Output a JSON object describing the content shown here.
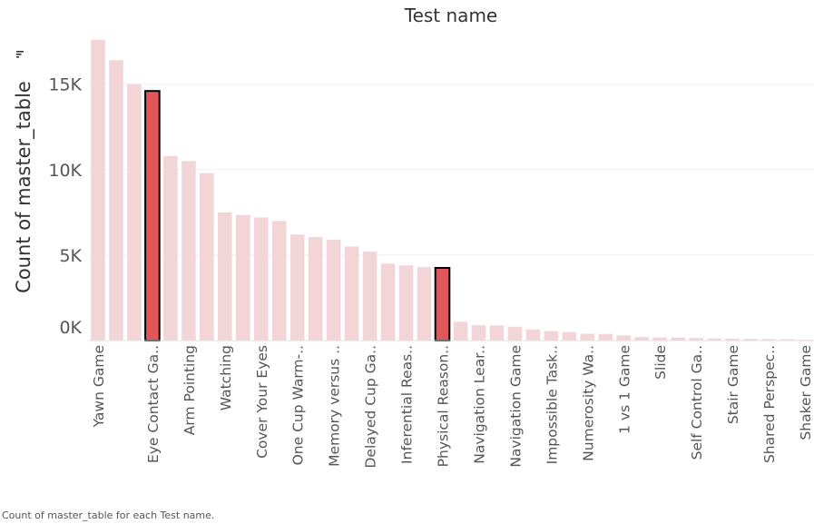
{
  "chart_data": {
    "type": "bar",
    "title": "Test name",
    "xlabel": "",
    "ylabel": "Count of master_table",
    "ylim": [
      0,
      17800
    ],
    "y_ticks": [
      0,
      5000,
      10000,
      15000
    ],
    "y_tick_labels": [
      "0K",
      "5K",
      "10K",
      "15K"
    ],
    "grid": true,
    "sorted_icon": "sort-descending-icon",
    "categories": [
      "Yawn Game",
      "",
      "",
      "Eye Contact Ga..",
      "",
      "Arm Pointing",
      "",
      "Watching",
      "",
      "Cover Your Eyes",
      "",
      "One Cup Warm-..",
      "",
      "Memory versus ..",
      "",
      "Delayed Cup Ga..",
      "",
      "Inferential Reas..",
      "",
      "Physical Reason..",
      "",
      "Navigation Lear..",
      "",
      "Navigation Game",
      "",
      "Impossible Task..",
      "",
      "Numerosity Wa..",
      "",
      "1 vs 1 Game",
      "",
      "Slide",
      "",
      "Self Control Ga..",
      "",
      "Stair Game",
      "",
      "Shared Perspec..",
      "",
      "Shaker Game"
    ],
    "values": [
      17600,
      16400,
      15000,
      14600,
      10800,
      10500,
      9800,
      7500,
      7350,
      7200,
      7000,
      6200,
      6050,
      5900,
      5500,
      5200,
      4500,
      4400,
      4300,
      4250,
      1100,
      900,
      880,
      800,
      650,
      550,
      500,
      400,
      380,
      300,
      200,
      180,
      170,
      150,
      120,
      110,
      100,
      90,
      80,
      50
    ],
    "highlighted_indices": [
      3,
      19
    ],
    "colors": {
      "bar": "#f2d6d7",
      "highlight_fill": "#e15759",
      "highlight_stroke": "#000000",
      "text": "#555555",
      "title": "#333333",
      "gridline": "#efefef"
    }
  },
  "caption": "Count of master_table for each Test name."
}
